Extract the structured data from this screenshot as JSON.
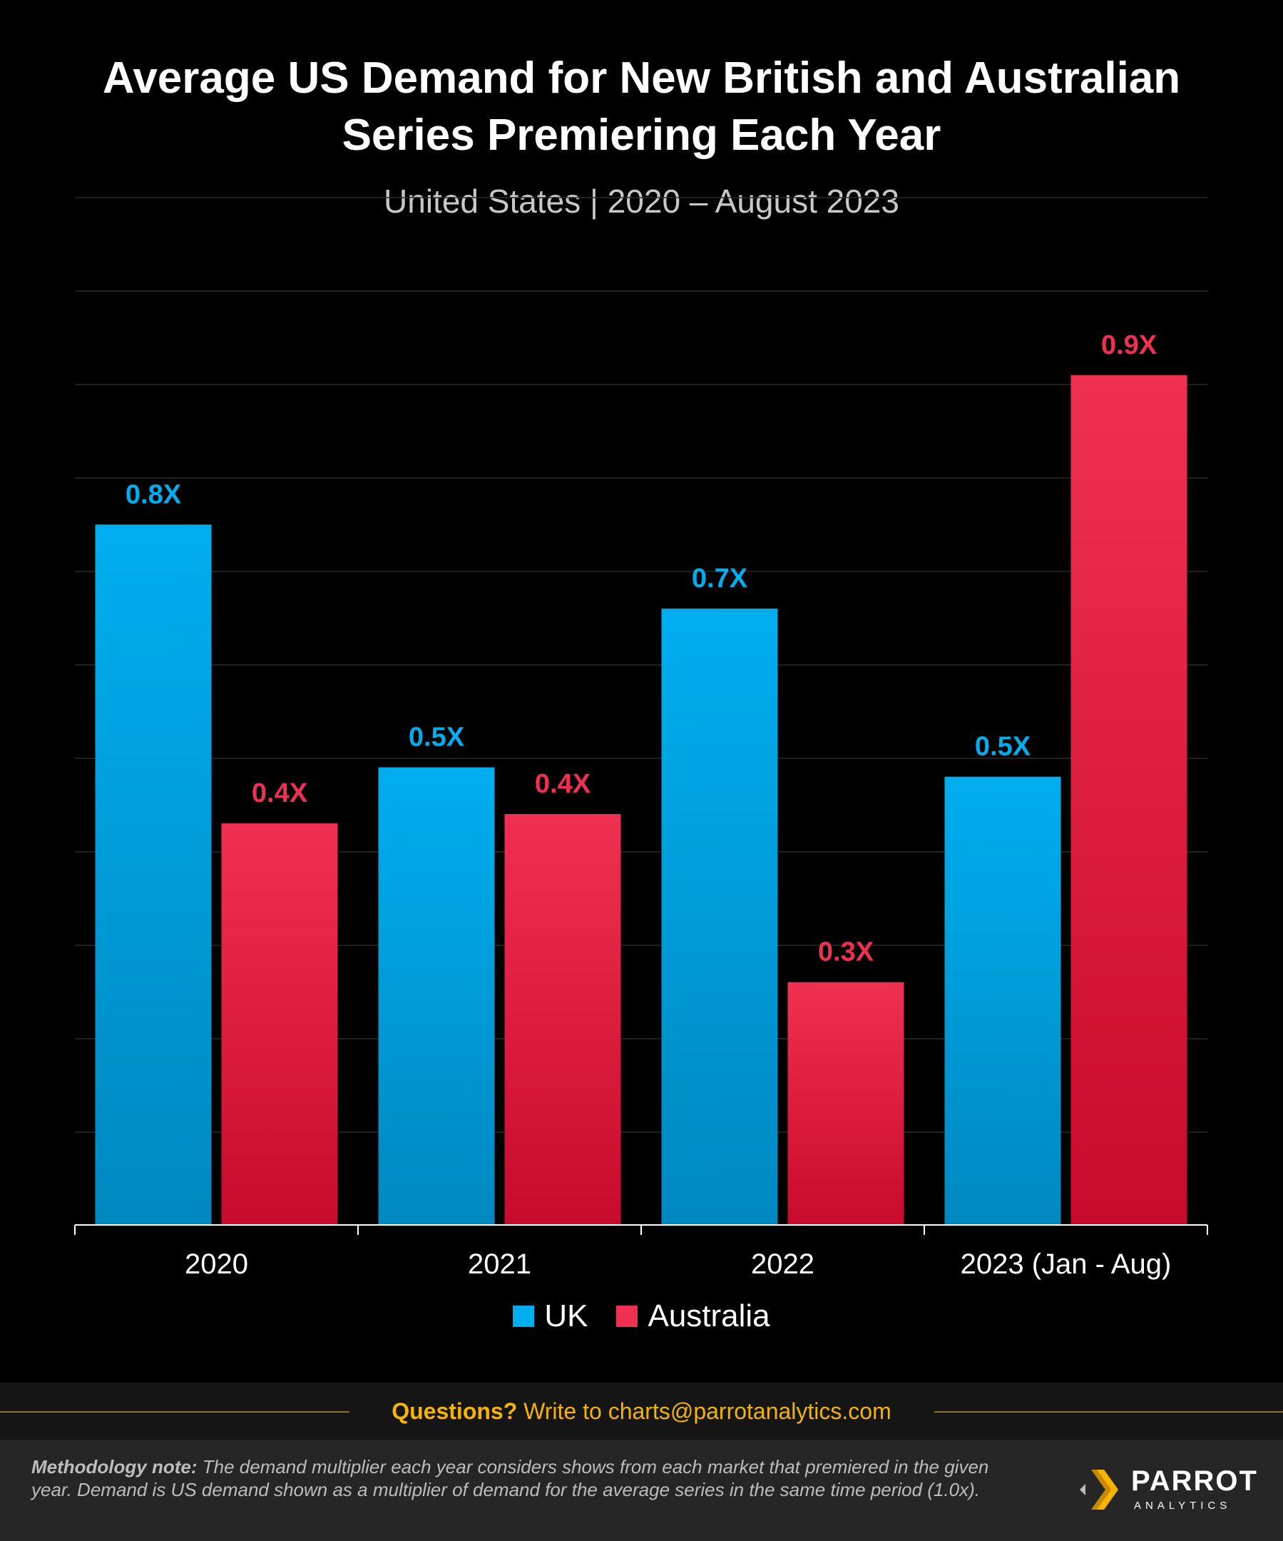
{
  "header": {
    "title_line1": "Average US Demand for New British and Australian",
    "title_line2": "Series Premiering Each Year",
    "subtitle": "United States  |  2020 – August 2023"
  },
  "chart_data": {
    "type": "bar",
    "categories": [
      "2020",
      "2021",
      "2022",
      "2023 (Jan - Aug)"
    ],
    "series": [
      {
        "name": "UK",
        "values": [
          0.75,
          0.49,
          0.66,
          0.48
        ],
        "labels": [
          "0.8X",
          "0.5X",
          "0.7X",
          "0.5X"
        ],
        "color": "#00aeef",
        "color_dark": "#0088c0"
      },
      {
        "name": "Australia",
        "values": [
          0.43,
          0.44,
          0.26,
          0.91
        ],
        "labels": [
          "0.4X",
          "0.4X",
          "0.3X",
          "0.9X"
        ],
        "color": "#f03050",
        "color_dark": "#c80a2c"
      }
    ],
    "ylim": [
      0,
      1.0
    ],
    "grid": true,
    "legend_position": "bottom"
  },
  "colors": {
    "background": "#000000",
    "gridline": "#2a2a2a",
    "axis": "#ffffff",
    "uk": "#00aeef",
    "australia": "#f03050",
    "footer_accent": "#f4b400"
  },
  "legend": {
    "uk_label": "UK",
    "australia_label": "Australia"
  },
  "footer": {
    "questions_bold": "Questions?",
    "questions_rest": " Write to charts@parrotanalytics.com",
    "note_bold": "Methodology note:",
    "note_text": " The demand multiplier each year considers shows from each market that premiered in the given year.  Demand is US demand shown as a multiplier of demand for the average series in the same time period (1.0x).",
    "logo_name": "PARROT",
    "logo_sub": "ANALYTICS"
  }
}
